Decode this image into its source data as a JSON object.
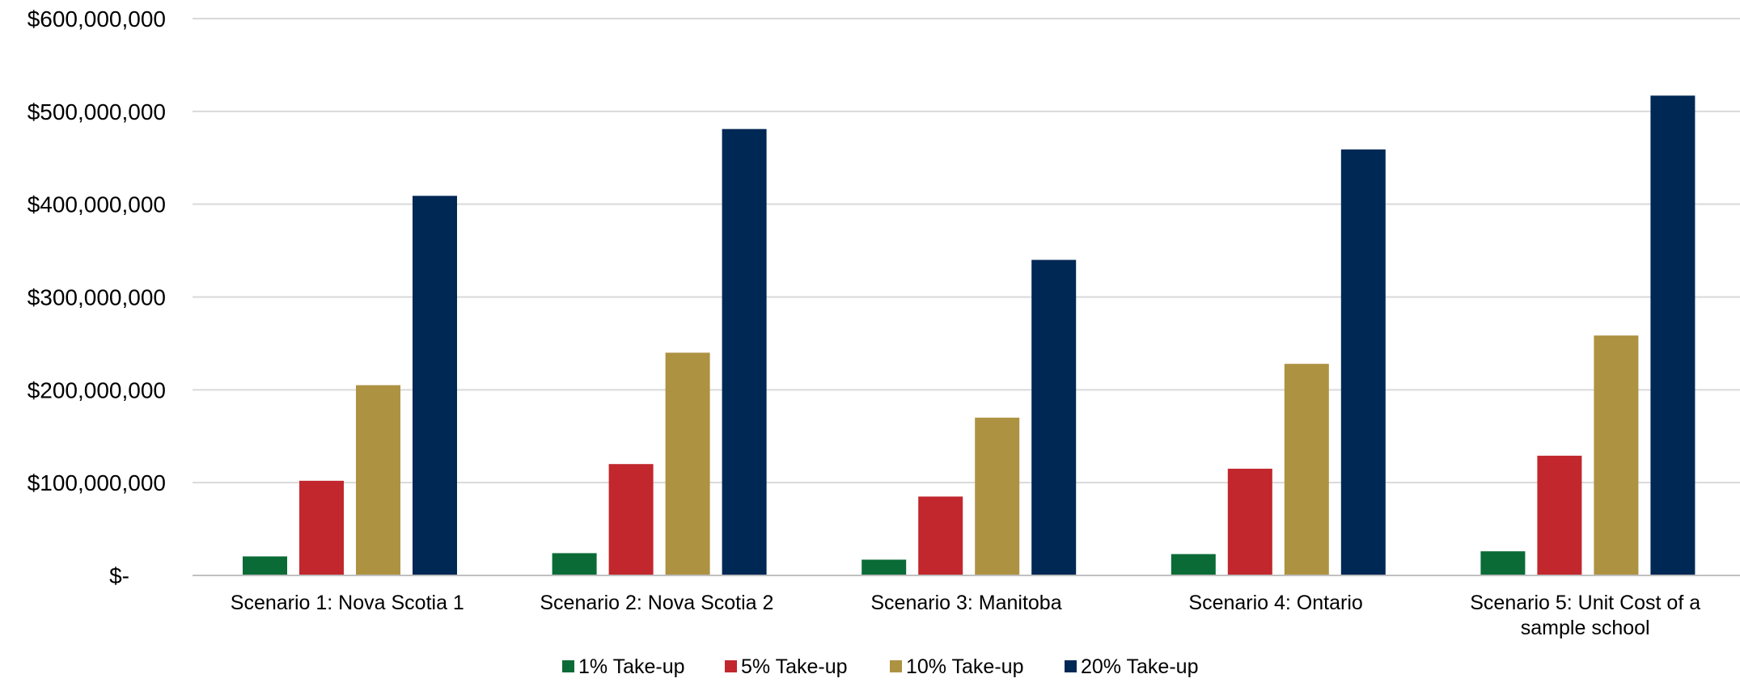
{
  "chart_data": {
    "type": "bar",
    "title": "",
    "xlabel": "",
    "ylabel": "",
    "ylim": [
      0,
      600000000
    ],
    "grid": true,
    "legend_position": "bottom",
    "y_tick_values": [
      0,
      100000000,
      200000000,
      300000000,
      400000000,
      500000000,
      600000000
    ],
    "y_tick_labels": [
      "$-",
      "$100,000,000",
      "$200,000,000",
      "$300,000,000",
      "$400,000,000",
      "$500,000,000",
      "$600,000,000"
    ],
    "categories": [
      "Scenario 1: Nova Scotia 1",
      "Scenario 2: Nova Scotia 2",
      "Scenario 3: Manitoba",
      "Scenario 4: Ontario",
      "Scenario 5: Unit Cost of a sample school"
    ],
    "series": [
      {
        "name": "1% Take-up",
        "color": "#0b6b37",
        "values": [
          20500000,
          24000000,
          17000000,
          23000000,
          26000000
        ]
      },
      {
        "name": "5% Take-up",
        "color": "#c1272d",
        "values": [
          102000000,
          120000000,
          85000000,
          115000000,
          129000000
        ]
      },
      {
        "name": "10% Take-up",
        "color": "#ad9242",
        "values": [
          205000000,
          240000000,
          170000000,
          228000000,
          258500000
        ]
      },
      {
        "name": "20% Take-up",
        "color": "#002855",
        "values": [
          409000000,
          481000000,
          340000000,
          459000000,
          517000000
        ]
      }
    ],
    "gridline_color": "#d9d9d9",
    "axis_color": "#bfbfbf"
  }
}
